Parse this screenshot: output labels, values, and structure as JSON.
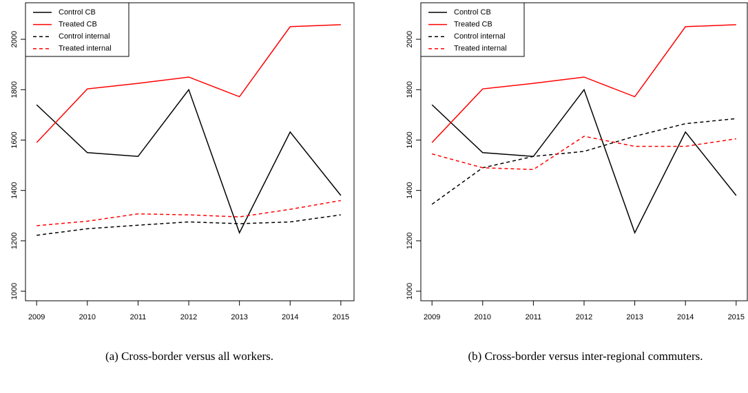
{
  "chart_data": [
    {
      "type": "line",
      "caption": "(a) Cross-border versus all workers.",
      "x": [
        2009,
        2010,
        2011,
        2012,
        2013,
        2014,
        2015
      ],
      "xlim": [
        2008.78,
        2015.26
      ],
      "xticks": [
        2009,
        2010,
        2011,
        2012,
        2013,
        2014,
        2015
      ],
      "ylim": [
        962,
        2145
      ],
      "yticks": [
        1000,
        1200,
        1400,
        1600,
        1800,
        2000
      ],
      "legend": "top-left",
      "series": [
        {
          "name": "Control CB",
          "color": "#000000",
          "linestyle": "solid",
          "values": [
            1740,
            1550,
            1535,
            1800,
            1232,
            1632,
            1380
          ]
        },
        {
          "name": "Treated CB",
          "color": "#ff0000",
          "linestyle": "solid",
          "values": [
            1590,
            1803,
            1825,
            1850,
            1772,
            2050,
            2058
          ]
        },
        {
          "name": "Control internal",
          "color": "#000000",
          "linestyle": "dashed",
          "values": [
            1222,
            1248,
            1262,
            1275,
            1268,
            1275,
            1303
          ]
        },
        {
          "name": "Treated internal",
          "color": "#ff0000",
          "linestyle": "dashed",
          "values": [
            1260,
            1278,
            1307,
            1303,
            1295,
            1325,
            1360
          ]
        }
      ]
    },
    {
      "type": "line",
      "caption": "(b) Cross-border versus inter-regional commuters.",
      "x": [
        2009,
        2010,
        2011,
        2012,
        2013,
        2014,
        2015
      ],
      "xlim": [
        2008.78,
        2015.22
      ],
      "xticks": [
        2009,
        2010,
        2011,
        2012,
        2013,
        2014,
        2015
      ],
      "ylim": [
        962,
        2145
      ],
      "yticks": [
        1000,
        1200,
        1400,
        1600,
        1800,
        2000
      ],
      "legend": "top-left",
      "series": [
        {
          "name": "Control CB",
          "color": "#000000",
          "linestyle": "solid",
          "values": [
            1740,
            1550,
            1535,
            1800,
            1232,
            1632,
            1380
          ]
        },
        {
          "name": "Treated CB",
          "color": "#ff0000",
          "linestyle": "solid",
          "values": [
            1590,
            1803,
            1825,
            1850,
            1772,
            2050,
            2058
          ]
        },
        {
          "name": "Control internal",
          "color": "#000000",
          "linestyle": "dashed",
          "values": [
            1345,
            1490,
            1535,
            1555,
            1615,
            1665,
            1685
          ]
        },
        {
          "name": "Treated internal",
          "color": "#ff0000",
          "linestyle": "dashed",
          "values": [
            1545,
            1490,
            1483,
            1615,
            1575,
            1575,
            1605
          ]
        }
      ]
    }
  ]
}
